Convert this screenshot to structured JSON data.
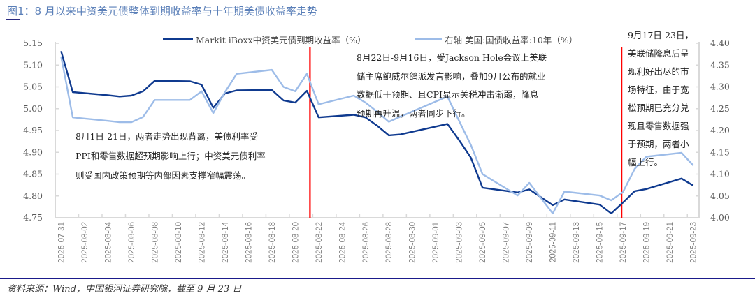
{
  "title": "图1：8 月以来中资美元债整体到期收益率与十年期美债收益率走势",
  "source": "资料来源：Wind，中国银河证券研究院，截至 9 月 23 日",
  "annotations": [
    {
      "lines": [
        "8月1日-21日，两者走势出现背离，美债利率受",
        "PPI和零售数据超预期影响上行；中资美元债利率",
        "则受国内政策预期等内部因素支撑窄幅震荡。"
      ]
    },
    {
      "lines": [
        "8月22日-9月16日，受Jackson Hole会议上美联",
        "储主席鲍威尔鸽派发言影响，叠加9月公布的就业",
        "数据低于预期、且CPI显示关税冲击渐弱，降息",
        "预期再升温，两者同步下行。"
      ]
    },
    {
      "lines": [
        "9月17日-23日，",
        "美联储降息后呈",
        "现利好出尽的市",
        "场特征，由于宽",
        "松预期已充分兑",
        "现且零售数据强",
        "于预期，两者小",
        "幅上行。"
      ]
    }
  ],
  "chart_data": {
    "type": "line",
    "x_axis_type": "date",
    "x_tick_labels": [
      "2025-07-31",
      "2025-08-02",
      "2025-08-04",
      "2025-08-06",
      "2025-08-08",
      "2025-08-10",
      "2025-08-12",
      "2025-08-14",
      "2025-08-16",
      "2025-08-18",
      "2025-08-20",
      "2025-08-22",
      "2025-08-24",
      "2025-08-26",
      "2025-08-28",
      "2025-08-30",
      "2025-09-01",
      "2025-09-03",
      "2025-09-05",
      "2025-09-07",
      "2025-09-09",
      "2025-09-11",
      "2025-09-13",
      "2025-09-15",
      "2025-09-17",
      "2025-09-19",
      "2025-09-21",
      "2025-09-23"
    ],
    "x_range": [
      "2025-07-31",
      "2025-09-23"
    ],
    "x": [
      "2025-07-31",
      "2025-08-01",
      "2025-08-04",
      "2025-08-05",
      "2025-08-06",
      "2025-08-07",
      "2025-08-08",
      "2025-08-11",
      "2025-08-12",
      "2025-08-13",
      "2025-08-14",
      "2025-08-15",
      "2025-08-18",
      "2025-08-19",
      "2025-08-20",
      "2025-08-21",
      "2025-08-22",
      "2025-08-25",
      "2025-08-26",
      "2025-08-27",
      "2025-08-28",
      "2025-08-29",
      "2025-09-02",
      "2025-09-03",
      "2025-09-04",
      "2025-09-05",
      "2025-09-08",
      "2025-09-09",
      "2025-09-10",
      "2025-09-11",
      "2025-09-12",
      "2025-09-15",
      "2025-09-16",
      "2025-09-17",
      "2025-09-18",
      "2025-09-19",
      "2025-09-22",
      "2025-09-23"
    ],
    "series": [
      {
        "name": "Markit iBoxx中资美元债到期收益率（%）",
        "axis": "left",
        "color": "#0f3a8f",
        "values": [
          5.132,
          5.038,
          5.031,
          5.028,
          5.03,
          5.04,
          5.064,
          5.063,
          5.055,
          5.002,
          5.035,
          5.042,
          5.043,
          5.019,
          5.014,
          5.041,
          4.98,
          4.986,
          4.98,
          4.961,
          4.939,
          4.941,
          4.965,
          4.928,
          4.888,
          4.819,
          4.808,
          4.815,
          4.797,
          4.779,
          4.792,
          4.78,
          4.76,
          4.785,
          4.811,
          4.816,
          4.84,
          4.824
        ]
      },
      {
        "name": "右轴 美国:国债收益率:10年（%）",
        "axis": "right",
        "color": "#9dbce8",
        "values": [
          4.37,
          4.23,
          4.222,
          4.219,
          4.219,
          4.231,
          4.27,
          4.27,
          4.29,
          4.24,
          4.288,
          4.33,
          4.339,
          4.3,
          4.29,
          4.33,
          4.26,
          4.28,
          4.264,
          4.243,
          4.22,
          4.232,
          4.278,
          4.222,
          4.167,
          4.1,
          4.051,
          4.08,
          4.045,
          4.01,
          4.06,
          4.051,
          4.04,
          4.059,
          4.112,
          4.14,
          4.149,
          4.12
        ]
      }
    ],
    "y_left": {
      "range": [
        4.75,
        5.15
      ],
      "ticks": [
        "5.15",
        "5.10",
        "5.05",
        "5.00",
        "4.95",
        "4.90",
        "4.85",
        "4.80",
        "4.75"
      ]
    },
    "y_right": {
      "range": [
        4.0,
        4.4
      ],
      "ticks": [
        "4.40",
        "4.35",
        "4.30",
        "4.25",
        "4.20",
        "4.15",
        "4.10",
        "4.05",
        "4.00"
      ]
    },
    "vertical_markers": [
      {
        "between": [
          "2025-08-21",
          "2025-08-22"
        ],
        "color": "#ff0000"
      },
      {
        "at": "2025-09-17",
        "color": "#ff0000"
      }
    ],
    "grid": false,
    "legend": "top"
  }
}
